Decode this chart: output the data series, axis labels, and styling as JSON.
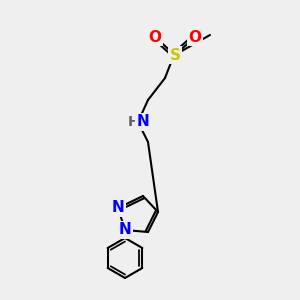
{
  "background_color": "#efefef",
  "atoms": {
    "S": {
      "color": "#c8c800",
      "fontsize": 11
    },
    "O": {
      "color": "#ff0000",
      "fontsize": 11
    },
    "N": {
      "color": "#0000ff",
      "fontsize": 11
    },
    "H": {
      "color": "#808080",
      "fontsize": 11
    },
    "C": {
      "color": "#000000",
      "fontsize": 9
    }
  },
  "bond_color": "#000000",
  "bond_lw": 1.5
}
